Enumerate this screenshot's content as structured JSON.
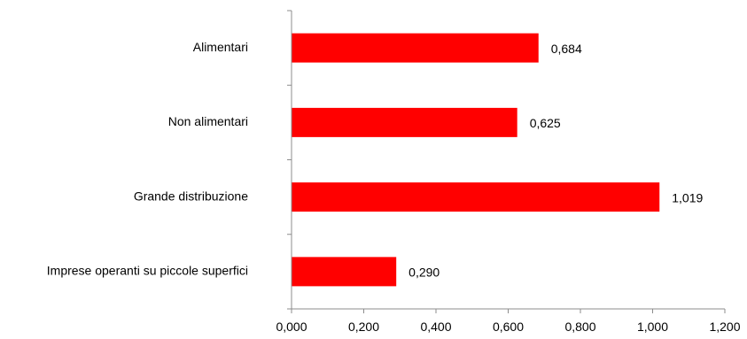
{
  "chart_data": {
    "type": "bar",
    "orientation": "horizontal",
    "categories": [
      "Alimentari",
      "Non alimentari",
      "Grande distribuzione",
      "Imprese operanti su piccole superfici"
    ],
    "values": [
      0.684,
      0.625,
      1.019,
      0.29
    ],
    "value_labels": [
      "0,684",
      "0,625",
      "1,019",
      "0,290"
    ],
    "x_ticks": [
      "0,000",
      "0,200",
      "0,400",
      "0,600",
      "0,800",
      "1,000",
      "1,200"
    ],
    "xlim": [
      0,
      1.2
    ],
    "title": "",
    "xlabel": "",
    "ylabel": "",
    "grid": false,
    "legend": "none",
    "bar_color": "#ff0000"
  }
}
